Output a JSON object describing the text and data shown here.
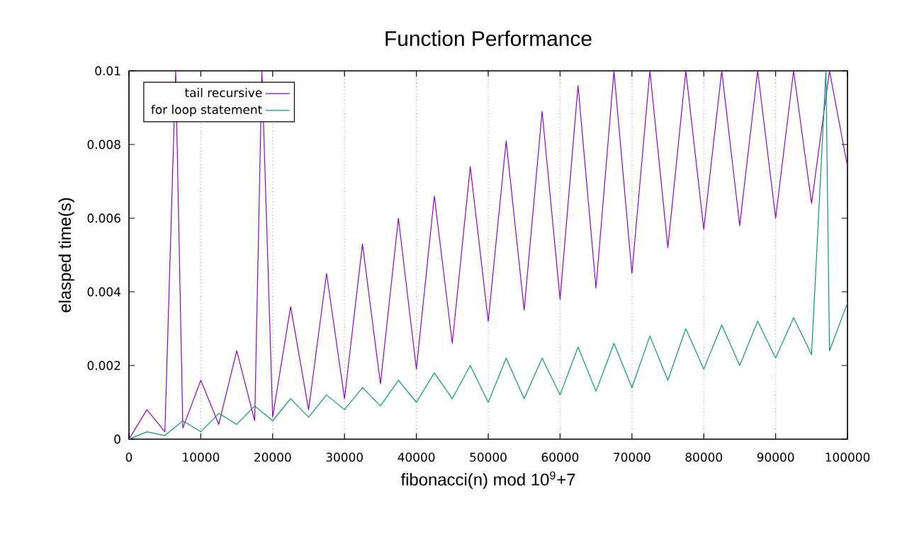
{
  "chart_data": {
    "type": "line",
    "title": "Function Performance",
    "xlabel": "fibonacci(n) mod 10$^{9}$+7",
    "ylabel": "elasped time(s)",
    "xlim": [
      0,
      100000
    ],
    "xticks": [
      0,
      10000,
      20000,
      30000,
      40000,
      50000,
      60000,
      70000,
      80000,
      90000,
      100000
    ],
    "ylim": [
      0,
      0.01
    ],
    "yticks": [
      0,
      0.002,
      0.004,
      0.006,
      0.008,
      0.01
    ],
    "grid": "x",
    "legend": "top left",
    "marker": "none",
    "line_style": "solid",
    "series": [
      {
        "name": "tail recursive",
        "color": "#9400d3",
        "x": [
          0,
          2500,
          5000,
          6500,
          7500,
          10000,
          12500,
          15000,
          17500,
          18500,
          20000,
          22500,
          25000,
          27500,
          30000,
          32500,
          35000,
          37500,
          40000,
          42500,
          45000,
          47500,
          50000,
          52500,
          55000,
          57500,
          60000,
          62500,
          65000,
          67500,
          70000,
          72500,
          75000,
          77500,
          80000,
          82500,
          85000,
          87500,
          90000,
          92500,
          95000,
          97500,
          100000
        ],
        "values": [
          0,
          0.0008,
          0.0002,
          0.01,
          0.0003,
          0.0016,
          0.0004,
          0.0024,
          0.0005,
          0.01,
          0.0006,
          0.0036,
          0.0008,
          0.0045,
          0.0011,
          0.0053,
          0.0015,
          0.006,
          0.0019,
          0.0066,
          0.0026,
          0.0074,
          0.0032,
          0.0081,
          0.0035,
          0.0089,
          0.0038,
          0.0096,
          0.0041,
          0.01,
          0.0045,
          0.01,
          0.0052,
          0.01,
          0.0057,
          0.01,
          0.0058,
          0.01,
          0.006,
          0.01,
          0.0064,
          0.01,
          0.0074
        ]
      },
      {
        "name": "for loop statement",
        "color": "#009e73",
        "x": [
          0,
          2500,
          5000,
          7500,
          10000,
          12500,
          15000,
          17500,
          20000,
          22500,
          25000,
          27500,
          30000,
          32500,
          35000,
          37500,
          40000,
          42500,
          45000,
          47500,
          50000,
          52500,
          55000,
          57500,
          60000,
          62500,
          65000,
          67500,
          70000,
          72500,
          75000,
          77500,
          80000,
          82500,
          85000,
          87500,
          90000,
          92500,
          95000,
          97000,
          97500,
          100000
        ],
        "values": [
          0,
          0.0002,
          0.0001,
          0.0005,
          0.0002,
          0.0007,
          0.0004,
          0.0009,
          0.0005,
          0.0011,
          0.0006,
          0.0012,
          0.0008,
          0.0014,
          0.0009,
          0.0016,
          0.001,
          0.0018,
          0.0011,
          0.002,
          0.001,
          0.0022,
          0.0011,
          0.0022,
          0.0012,
          0.0025,
          0.0013,
          0.0026,
          0.0014,
          0.0028,
          0.0016,
          0.003,
          0.0019,
          0.0031,
          0.002,
          0.0032,
          0.0022,
          0.0033,
          0.0023,
          0.01,
          0.0024,
          0.0037
        ]
      }
    ]
  }
}
